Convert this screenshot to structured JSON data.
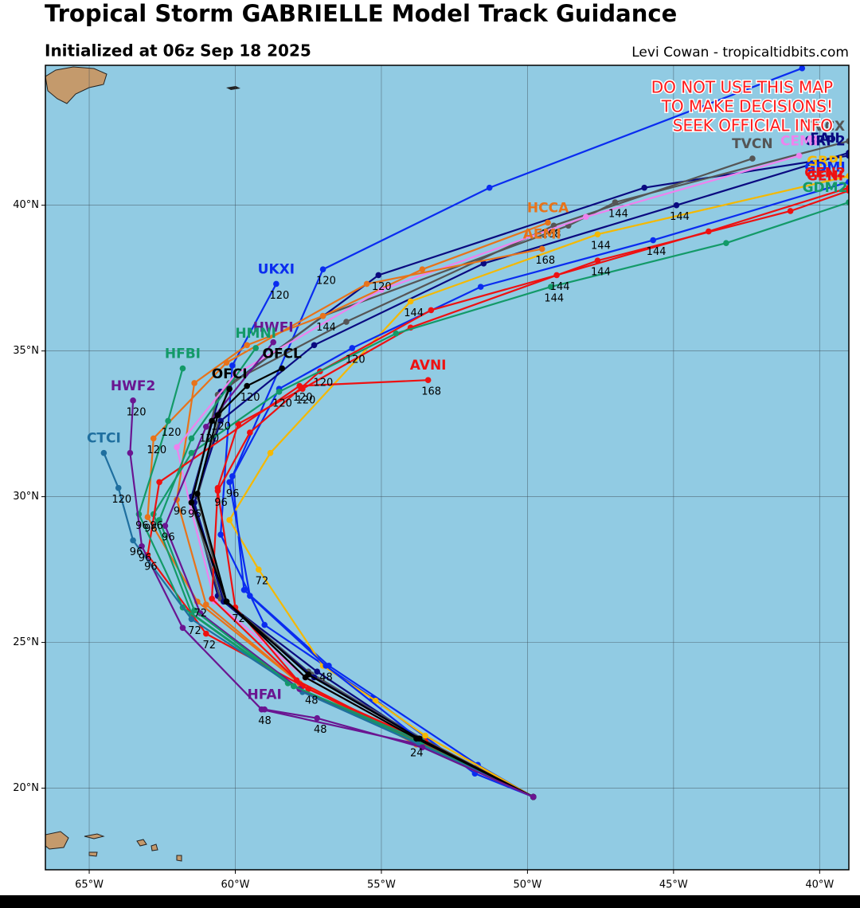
{
  "title": "Tropical Storm GABRIELLE Model Track Guidance",
  "subtitle": "Initialized at 06z Sep 18 2025",
  "credit": "Levi Cowan - tropicaltidbits.com",
  "warning": [
    "DO NOT USE THIS MAP",
    "TO MAKE DECISIONS!",
    "SEEK OFFICIAL INFO"
  ],
  "map": {
    "xlim": [
      -66.5,
      -39
    ],
    "ylim": [
      17.2,
      44.8
    ],
    "grid": true,
    "xticks": [
      {
        "value": -65,
        "label": "65°W"
      },
      {
        "value": -60,
        "label": "60°W"
      },
      {
        "value": -55,
        "label": "55°W"
      },
      {
        "value": -50,
        "label": "50°W"
      },
      {
        "value": -45,
        "label": "45°W"
      },
      {
        "value": -40,
        "label": "40°W"
      }
    ],
    "yticks": [
      {
        "value": 20,
        "label": "20°N"
      },
      {
        "value": 25,
        "label": "25°N"
      },
      {
        "value": 30,
        "label": "30°N"
      },
      {
        "value": 35,
        "label": "35°N"
      },
      {
        "value": 40,
        "label": "40°N"
      }
    ],
    "tracks": [
      {
        "name": "UKMI",
        "color": "#0a2cf0",
        "lon": [
          -49.8,
          -51.7,
          -56.8,
          -59.7,
          -60.1,
          -57.0,
          -51.3,
          -40.6
        ],
        "lat": [
          19.7,
          20.8,
          24.2,
          26.8,
          30.7,
          37.8,
          40.6,
          44.7
        ],
        "labels": [
          null,
          null,
          null,
          null,
          null,
          "120",
          null,
          null
        ]
      },
      {
        "name": "UKXI",
        "color": "#0a2cf0",
        "lon": [
          -49.8,
          -51.8,
          -55.3,
          -59.0,
          -60.5,
          -60.1,
          -58.6
        ],
        "lat": [
          19.7,
          20.5,
          23.1,
          25.6,
          28.7,
          34.5,
          37.3
        ],
        "labels": [
          null,
          null,
          null,
          null,
          null,
          null,
          "120"
        ]
      },
      {
        "name": "GRP2",
        "color": "#0a0a80",
        "lon": [
          -49.8,
          -53.6,
          -57.2,
          -60.6,
          -61.5,
          -60.5,
          -55.1,
          -46.0,
          -39.0
        ],
        "lat": [
          19.7,
          21.6,
          24.0,
          26.6,
          30.0,
          33.6,
          37.6,
          40.6,
          41.7
        ],
        "labels": [
          null,
          null,
          null,
          null,
          null,
          null,
          "120",
          null,
          null
        ]
      },
      {
        "name": "TVCN",
        "color": "#555555",
        "lon": [
          -49.8,
          -53.6,
          -57.4,
          -60.4,
          -61.3,
          -60.2,
          -56.2,
          -49.1,
          -42.3
        ],
        "lat": [
          19.7,
          21.7,
          23.9,
          26.5,
          30.0,
          33.9,
          36.0,
          39.3,
          41.6
        ],
        "labels": [
          null,
          null,
          null,
          null,
          null,
          null,
          null,
          null,
          null
        ]
      },
      {
        "name": "TVCX",
        "color": "#555555",
        "lon": [
          -49.8,
          -53.7,
          -57.5,
          -60.5,
          -61.5,
          -60.6,
          -57.0,
          -48.6,
          -47.0,
          -39.0
        ],
        "lat": [
          19.7,
          21.7,
          24.0,
          26.5,
          29.8,
          33.5,
          36.2,
          39.3,
          40.1,
          42.2
        ],
        "labels": [
          null,
          null,
          null,
          null,
          null,
          null,
          "144",
          null,
          "144",
          null
        ]
      },
      {
        "name": "EAII",
        "color": "#0a0a80",
        "lon": [
          -49.8,
          -53.5,
          -57.3,
          -60.4,
          -61.4,
          -60.5,
          -57.3,
          -51.5,
          -44.9,
          -39.0
        ],
        "lat": [
          19.7,
          21.6,
          23.8,
          26.4,
          29.8,
          32.6,
          35.2,
          38.0,
          40.0,
          41.8
        ],
        "labels": [
          null,
          null,
          null,
          null,
          null,
          null,
          null,
          null,
          "144",
          null
        ]
      },
      {
        "name": "HCCA",
        "color": "#e8731a",
        "lon": [
          -49.8,
          -53.8,
          -57.8,
          -61.0,
          -62.0,
          -61.4,
          -59.6,
          -57.0,
          -53.6,
          -49.3
        ],
        "lat": [
          19.7,
          21.5,
          23.6,
          26.3,
          29.9,
          33.9,
          35.2,
          36.2,
          37.8,
          39.4
        ],
        "labels": [
          null,
          null,
          null,
          null,
          "96",
          null,
          null,
          null,
          null,
          "168"
        ]
      },
      {
        "name": "CEMI",
        "color": "#ee82ee",
        "lon": [
          -49.8,
          -53.6,
          -57.6,
          -60.7,
          -61.5,
          -62.0,
          -60.0,
          -55.0,
          -48.0,
          -40.7
        ],
        "lat": [
          19.7,
          21.6,
          23.8,
          26.4,
          29.5,
          31.7,
          34.2,
          37.1,
          39.6,
          41.7
        ],
        "labels": [
          null,
          null,
          null,
          null,
          null,
          null,
          null,
          null,
          null,
          null
        ]
      },
      {
        "name": "GRPI",
        "color": "#f5b800",
        "lon": [
          -49.8,
          -53.5,
          -55.2,
          -57.0,
          -59.2,
          -60.2,
          -58.8,
          -54.0,
          -47.6,
          -39.0
        ],
        "lat": [
          19.7,
          21.8,
          23.0,
          24.2,
          27.5,
          29.2,
          31.5,
          36.7,
          39.0,
          41.0
        ],
        "labels": [
          null,
          null,
          null,
          "48",
          "72",
          null,
          null,
          "144",
          "144",
          null
        ]
      },
      {
        "name": "AEMI",
        "color": "#e8731a",
        "lon": [
          -49.8,
          -53.8,
          -57.8,
          -61.3,
          -63.0,
          -62.8,
          -60.3,
          -55.5,
          -49.5
        ],
        "lat": [
          19.7,
          21.5,
          23.6,
          26.4,
          29.3,
          32.0,
          34.6,
          37.3,
          38.5
        ],
        "labels": [
          null,
          null,
          null,
          "72",
          "96",
          "120",
          null,
          null,
          "168"
        ]
      },
      {
        "name": "GDMI",
        "color": "#0a2cf0",
        "lon": [
          -49.8,
          -53.6,
          -56.9,
          -59.5,
          -60.2,
          -58.5,
          -56.0,
          -51.6,
          -45.7,
          -39.0
        ],
        "lat": [
          19.7,
          21.6,
          24.2,
          26.6,
          30.5,
          33.7,
          35.1,
          37.2,
          38.8,
          40.8
        ],
        "labels": [
          null,
          null,
          null,
          null,
          "96",
          null,
          "120",
          null,
          "144",
          null
        ]
      },
      {
        "name": "GEN2",
        "color": "#ee1111",
        "lon": [
          -49.8,
          -53.7,
          -57.7,
          -60.0,
          -60.6,
          -59.5,
          -57.1,
          -53.3,
          -49.0,
          -43.8,
          -39.0
        ],
        "lat": [
          19.7,
          21.6,
          23.5,
          26.2,
          30.2,
          32.2,
          34.3,
          36.4,
          37.6,
          39.1,
          40.6
        ],
        "labels": [
          null,
          null,
          null,
          "72",
          "96",
          null,
          "120",
          null,
          "144",
          null,
          null
        ]
      },
      {
        "name": "GENI",
        "color": "#ee1111",
        "lon": [
          -49.8,
          -53.8,
          -57.9,
          -60.8,
          -60.6,
          -59.9,
          -57.7,
          -54.0,
          -47.6,
          -41.0,
          -39.0
        ],
        "lat": [
          19.7,
          21.6,
          23.7,
          26.5,
          30.3,
          32.5,
          33.7,
          35.8,
          38.1,
          39.8,
          40.5
        ],
        "labels": [
          null,
          null,
          null,
          null,
          null,
          null,
          "120",
          null,
          "144",
          null,
          null
        ]
      },
      {
        "name": "GDM2",
        "color": "#139a68",
        "lon": [
          -49.8,
          -53.8,
          -58.0,
          -61.5,
          -62.8,
          -61.5,
          -58.5,
          -54.5,
          -49.2,
          -43.2,
          -39.0
        ],
        "lat": [
          19.7,
          21.6,
          23.5,
          26.0,
          29.4,
          31.5,
          33.6,
          35.6,
          37.2,
          38.7,
          40.1
        ],
        "labels": [
          null,
          null,
          null,
          null,
          "96",
          null,
          "120",
          null,
          "144",
          null,
          null
        ]
      },
      {
        "name": "AVNI",
        "color": "#ee1111",
        "lon": [
          -49.8,
          -53.5,
          -57.5,
          -61.0,
          -63.0,
          -62.6,
          -57.8,
          -53.4
        ],
        "lat": [
          19.7,
          21.6,
          23.4,
          25.3,
          28.0,
          30.5,
          33.8,
          34.0
        ],
        "labels": [
          null,
          null,
          "48",
          "72",
          "96",
          null,
          "120",
          "168"
        ]
      },
      {
        "name": "HFBI",
        "color": "#139a68",
        "lon": [
          -49.8,
          -53.9,
          -58.2,
          -61.8,
          -63.3,
          -62.3,
          -61.8
        ],
        "lat": [
          19.7,
          21.6,
          23.6,
          26.2,
          29.4,
          32.6,
          34.4
        ],
        "labels": [
          null,
          "24",
          null,
          null,
          "96",
          "120",
          null
        ]
      },
      {
        "name": "HWF2",
        "color": "#6a1591",
        "lon": [
          -49.8,
          -53.7,
          -59.1,
          -61.8,
          -63.2,
          -63.6,
          -63.5
        ],
        "lat": [
          19.7,
          21.5,
          22.7,
          25.5,
          28.3,
          31.5,
          33.3
        ],
        "labels": [
          null,
          null,
          "48",
          null,
          "96",
          null,
          "120"
        ]
      },
      {
        "name": "CTCI",
        "color": "#1f6f9f",
        "lon": [
          -49.8,
          -53.7,
          -57.7,
          -61.5,
          -63.5,
          -64.0,
          -64.5
        ],
        "lat": [
          19.7,
          21.5,
          23.3,
          25.8,
          28.5,
          30.3,
          31.5
        ],
        "labels": [
          null,
          null,
          null,
          "72",
          "96",
          "120",
          null
        ]
      },
      {
        "name": "HWFI",
        "color": "#6a1591",
        "lon": [
          -49.8,
          -53.6,
          -57.8,
          -61.2,
          -62.4,
          -61.0,
          -58.7
        ],
        "lat": [
          19.7,
          21.6,
          23.4,
          26.0,
          29.0,
          32.4,
          35.3
        ],
        "labels": [
          null,
          null,
          null,
          null,
          "96",
          "120",
          null
        ]
      },
      {
        "name": "HMNI",
        "color": "#139a68",
        "lon": [
          -49.8,
          -53.6,
          -58.0,
          -61.4,
          -62.6,
          -61.5,
          -59.3
        ],
        "lat": [
          19.7,
          21.6,
          23.5,
          26.1,
          29.2,
          32.0,
          35.1
        ],
        "labels": [
          null,
          null,
          null,
          null,
          null,
          null,
          null
        ]
      },
      {
        "name": "OFCL",
        "color": "#000000",
        "lon": [
          -49.8,
          -53.8,
          -57.6,
          -60.3,
          -61.5,
          -60.8,
          -59.6,
          -58.4
        ],
        "lat": [
          19.7,
          21.7,
          23.8,
          26.4,
          29.8,
          32.6,
          33.8,
          34.4
        ],
        "labels": [
          null,
          null,
          null,
          null,
          "96",
          null,
          "120",
          null
        ]
      },
      {
        "name": "OFCI",
        "color": "#000000",
        "lon": [
          -49.8,
          -53.7,
          -57.5,
          -60.3,
          -61.3,
          -60.6,
          -60.2
        ],
        "lat": [
          19.7,
          21.7,
          23.9,
          26.4,
          30.1,
          32.8,
          33.7
        ],
        "labels": [
          null,
          null,
          null,
          null,
          null,
          "120",
          null
        ]
      },
      {
        "name": "HFAI",
        "color": "#6a1591",
        "lon": [
          -49.8,
          -53.6,
          -57.2,
          -59.0
        ],
        "lat": [
          19.7,
          21.4,
          22.4,
          22.7
        ],
        "labels": [
          null,
          null,
          "48",
          null
        ]
      }
    ]
  }
}
